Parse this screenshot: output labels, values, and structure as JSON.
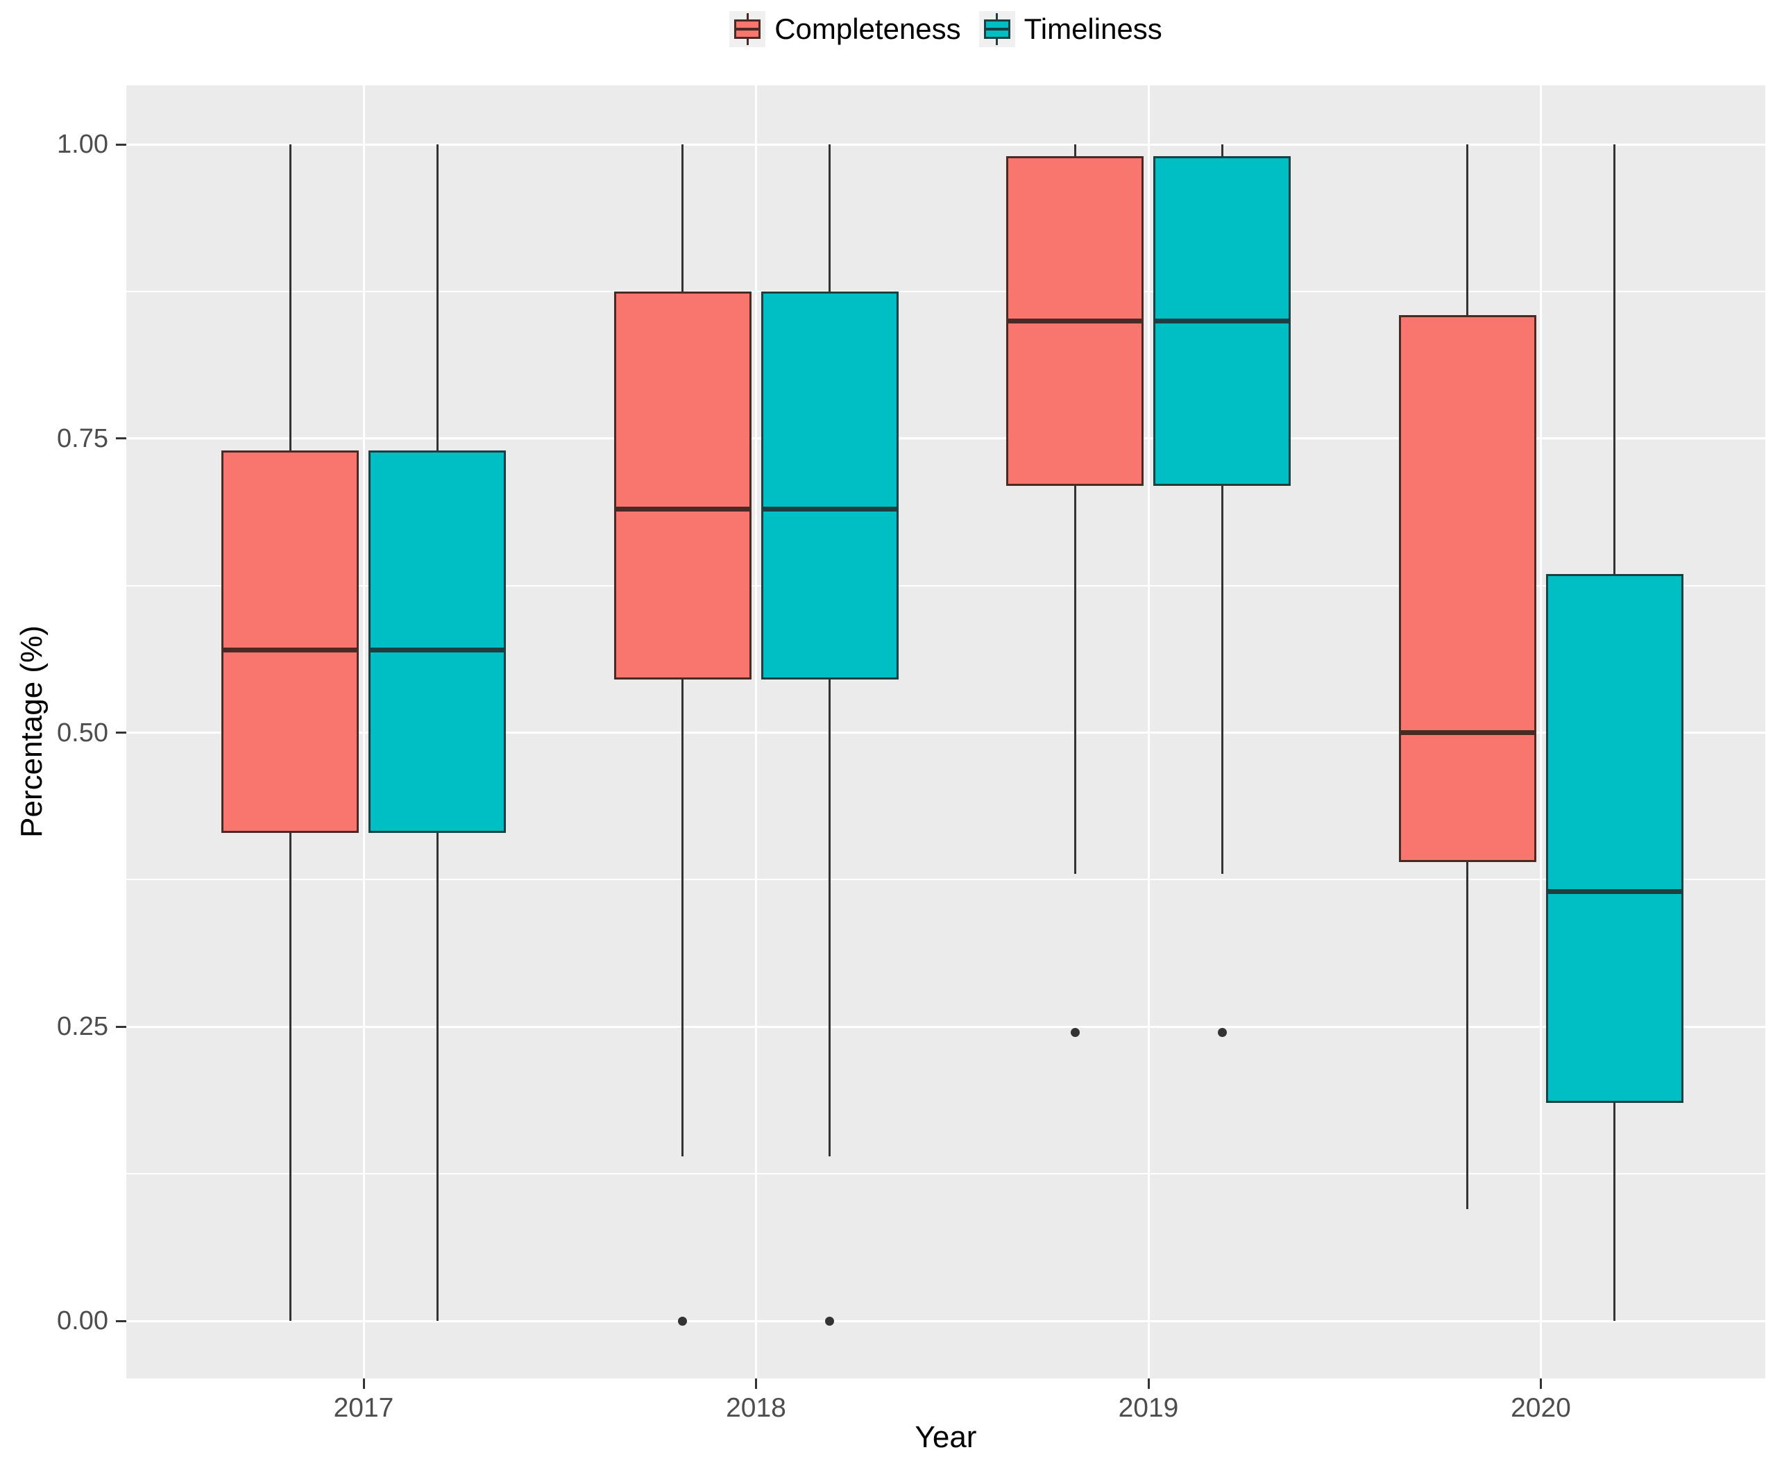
{
  "page": {
    "background": "#FFFFFF"
  },
  "legend": {
    "position": "top",
    "key_background": "#F0F0F0",
    "items": [
      {
        "label": "Completeness",
        "fill": "#F8766D",
        "stroke": "#4A2A25"
      },
      {
        "label": "Timeliness",
        "fill": "#00BFC4",
        "stroke": "#1E3F41"
      }
    ]
  },
  "axes": {
    "x": {
      "title": "Year",
      "tick_labels": [
        "2017",
        "2018",
        "2019",
        "2020"
      ]
    },
    "y": {
      "title": "Percentage (%)",
      "tick_labels": [
        "1.00",
        "0.75",
        "0.50",
        "0.25",
        "0.00"
      ],
      "tick_values": [
        1.0,
        0.75,
        0.5,
        0.25,
        0.0
      ]
    }
  },
  "panel": {
    "background": "#EBEBEB",
    "gridline_color": "#FFFFFF",
    "tick_color": "#333333",
    "tick_label_color": "#4D4D4D"
  },
  "chart_data": {
    "type": "boxplot-grouped",
    "title": "",
    "xlabel": "Year",
    "ylabel": "Percentage (%)",
    "categories": [
      "2017",
      "2018",
      "2019",
      "2020"
    ],
    "ylim": [
      0,
      1
    ],
    "y_major_gridlines": [
      0,
      0.25,
      0.5,
      0.75,
      1.0
    ],
    "y_minor_gridlines": [
      0.125,
      0.375,
      0.625,
      0.875
    ],
    "grid": true,
    "legend_position": "top",
    "whisker_color": "#333333",
    "outlier_color": "#333333",
    "series": [
      {
        "name": "Completeness",
        "fill": "#F8766D",
        "stroke": "#4A2A25",
        "boxes": [
          {
            "category": "2017",
            "whisker_low": 0.0,
            "q1": 0.415,
            "median": 0.57,
            "q3": 0.74,
            "whisker_high": 1.0,
            "outliers": []
          },
          {
            "category": "2018",
            "whisker_low": 0.14,
            "q1": 0.545,
            "median": 0.69,
            "q3": 0.875,
            "whisker_high": 1.0,
            "outliers": [
              0.0
            ]
          },
          {
            "category": "2019",
            "whisker_low": 0.38,
            "q1": 0.71,
            "median": 0.85,
            "q3": 0.99,
            "whisker_high": 1.0,
            "outliers": [
              0.245
            ]
          },
          {
            "category": "2020",
            "whisker_low": 0.095,
            "q1": 0.39,
            "median": 0.5,
            "q3": 0.855,
            "whisker_high": 1.0,
            "outliers": []
          }
        ]
      },
      {
        "name": "Timeliness",
        "fill": "#00BFC4",
        "stroke": "#1E3F41",
        "boxes": [
          {
            "category": "2017",
            "whisker_low": 0.0,
            "q1": 0.415,
            "median": 0.57,
            "q3": 0.74,
            "whisker_high": 1.0,
            "outliers": []
          },
          {
            "category": "2018",
            "whisker_low": 0.14,
            "q1": 0.545,
            "median": 0.69,
            "q3": 0.875,
            "whisker_high": 1.0,
            "outliers": [
              0.0
            ]
          },
          {
            "category": "2019",
            "whisker_low": 0.38,
            "q1": 0.71,
            "median": 0.85,
            "q3": 0.99,
            "whisker_high": 1.0,
            "outliers": [
              0.245
            ]
          },
          {
            "category": "2020",
            "whisker_low": 0.0,
            "q1": 0.185,
            "median": 0.365,
            "q3": 0.635,
            "whisker_high": 1.0,
            "outliers": []
          }
        ]
      }
    ]
  }
}
